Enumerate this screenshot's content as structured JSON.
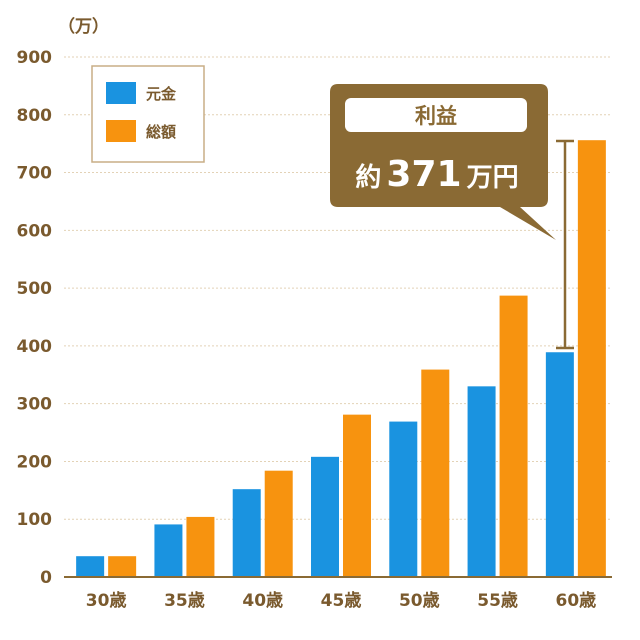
{
  "colors": {
    "principal": "#1a93e0",
    "total": "#f7930f",
    "axis_text": "#7a5a2e",
    "grid": "#e3d2b6",
    "callout": "#8a6a34"
  },
  "unit_label": "（万）",
  "legend": [
    "元金",
    "総額"
  ],
  "callout": {
    "title": "利益",
    "prefix": "約",
    "value": "371",
    "suffix": "万円"
  },
  "chart_data": {
    "type": "bar",
    "categories": [
      "30歳",
      "35歳",
      "40歳",
      "45歳",
      "50歳",
      "55歳",
      "60歳"
    ],
    "series": [
      {
        "name": "元金",
        "values": [
          36,
          91,
          152,
          208,
          269,
          330,
          389
        ]
      },
      {
        "name": "総額",
        "values": [
          36,
          104,
          184,
          281,
          359,
          487,
          756
        ]
      }
    ],
    "ylim": [
      0,
      900
    ],
    "yticks": [
      0,
      100,
      200,
      300,
      400,
      500,
      600,
      700,
      800,
      900
    ],
    "grid": true,
    "legend_position": "top-left",
    "annotation": "利益 約371万円"
  }
}
